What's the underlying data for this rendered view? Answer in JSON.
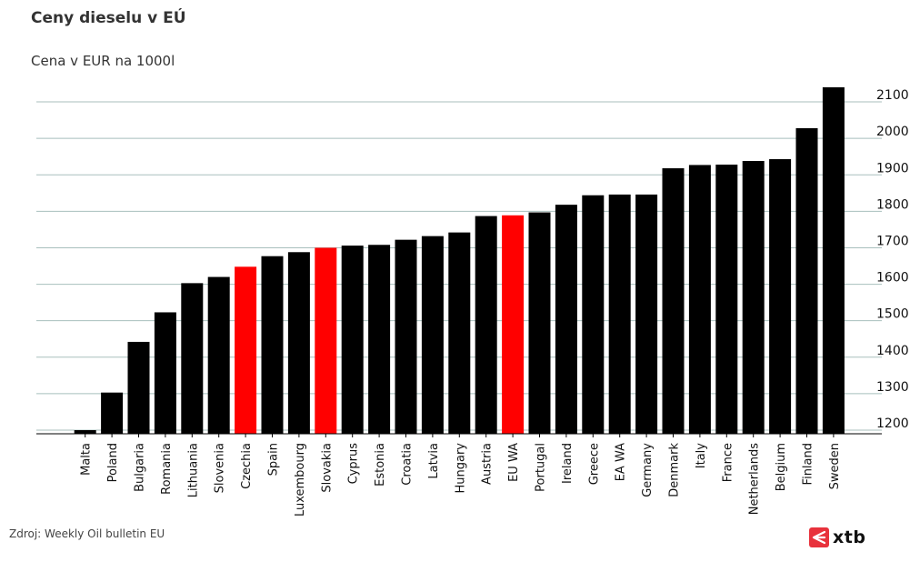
{
  "header": {
    "title": "Ceny dieselu v EÚ",
    "subtitle": "Cena v EUR na 1000l"
  },
  "footer": {
    "source": "Zdroj: Weekly Oil bulletin EU",
    "logo_text": "xtb",
    "logo_icon": "xtb-logo-icon"
  },
  "colors": {
    "bar_default": "#000000",
    "bar_highlight": "#ff0000",
    "grid": "#a8bfbd",
    "axis": "#000000",
    "logo_accent": "#e8323c"
  },
  "chart_data": {
    "type": "bar",
    "title": "",
    "xlabel": "",
    "ylabel": "",
    "ylim": [
      1190,
      2150
    ],
    "y_ticks": [
      1200,
      1300,
      1400,
      1500,
      1600,
      1700,
      1800,
      1900,
      2000,
      2100
    ],
    "y_axis_side": "right",
    "grid": true,
    "categories": [
      "Malta",
      "Poland",
      "Bulgaria",
      "Romania",
      "Lithuania",
      "Slovenia",
      "Czechia",
      "Spain",
      "Luxembourg",
      "Slovakia",
      "Cyprus",
      "Estonia",
      "Croatia",
      "Latvia",
      "Hungary",
      "Austria",
      "EU WA",
      "Portugal",
      "Ireland",
      "Greece",
      "EA WA",
      "Germany",
      "Denmark",
      "Italy",
      "France",
      "Netherlands",
      "Belgium",
      "Finland",
      "Sweden"
    ],
    "values": [
      1200,
      1303,
      1442,
      1523,
      1603,
      1620,
      1648,
      1677,
      1688,
      1700,
      1706,
      1708,
      1722,
      1732,
      1742,
      1787,
      1789,
      1797,
      1818,
      1844,
      1846,
      1846,
      1918,
      1927,
      1928,
      1938,
      1943,
      2028,
      2140
    ],
    "highlighted": [
      "Czechia",
      "Slovakia",
      "EU WA"
    ]
  }
}
